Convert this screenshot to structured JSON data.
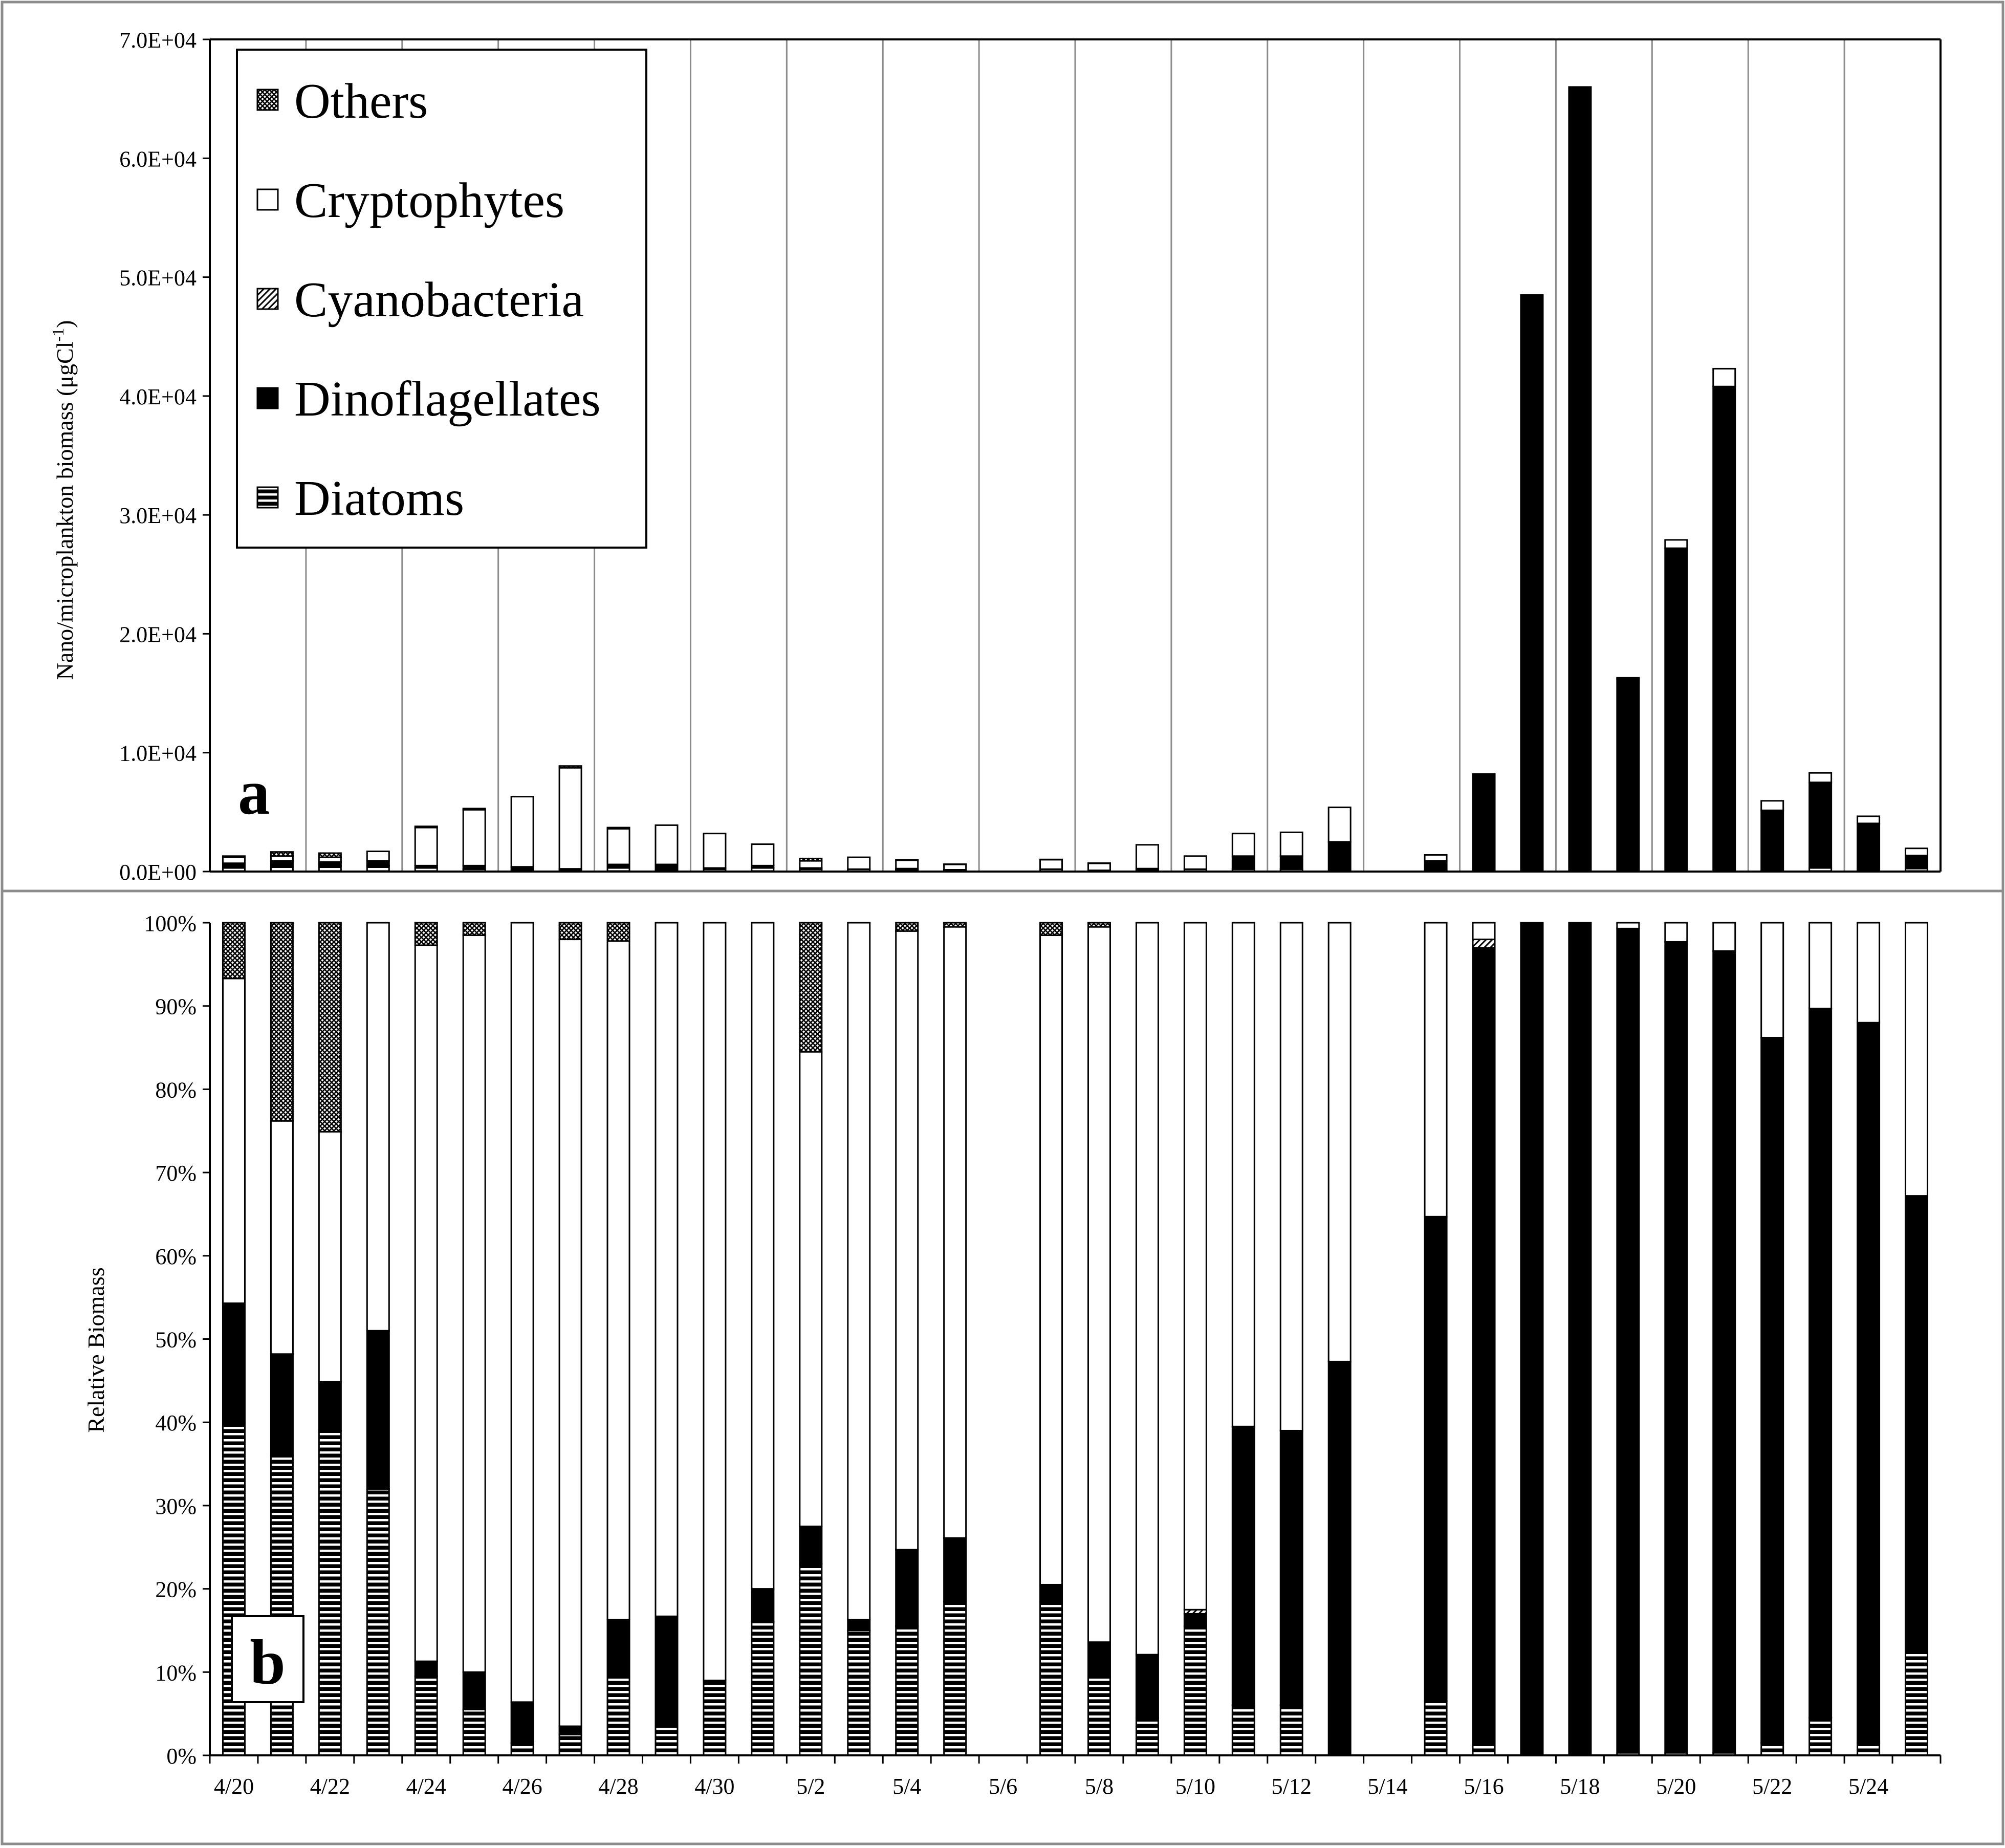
{
  "colors": {
    "background": "#ffffff",
    "axis": "#000000",
    "gridline": "#8c8c8c",
    "frame": "#8c8c8c",
    "bar_stroke": "#000000",
    "dinoflagellates": "#000000",
    "cryptophytes": "#ffffff"
  },
  "legend": {
    "placement": "top-left",
    "items": [
      {
        "label": "Others",
        "pattern": "crosshatch"
      },
      {
        "label": "Cryptophytes",
        "pattern": "white"
      },
      {
        "label": "Cyanobacteria",
        "pattern": "diagonal"
      },
      {
        "label": "Dinoflagellates",
        "pattern": "black"
      },
      {
        "label": "Diatoms",
        "pattern": "horizontal-stripes"
      }
    ]
  },
  "chart_data": [
    {
      "panel_label": "a",
      "type": "bar",
      "stacked": true,
      "ylabel": "Nano/microplankton biomass (μgCl-1)",
      "ylabel_parts": {
        "main": "Nano/microplankton biomass (μgCl",
        "superscript": "-1",
        "close": ")"
      },
      "ylim": [
        0,
        70000
      ],
      "yticks": [
        0,
        10000,
        20000,
        30000,
        40000,
        50000,
        60000,
        70000
      ],
      "ytick_labels": [
        "0.0E+00",
        "1.0E+04",
        "2.0E+04",
        "3.0E+04",
        "4.0E+04",
        "5.0E+04",
        "6.0E+04",
        "7.0E+04"
      ],
      "vertical_grid": true,
      "categories": [
        "4/20",
        "4/21",
        "4/22",
        "4/23",
        "4/24",
        "4/25",
        "4/26",
        "4/27",
        "4/28",
        "4/29",
        "4/30",
        "5/1",
        "5/2",
        "5/3",
        "5/4",
        "5/5",
        "5/6",
        "5/7",
        "5/8",
        "5/9",
        "5/10",
        "5/11",
        "5/12",
        "5/13",
        "5/14",
        "5/15",
        "5/16",
        "5/17",
        "5/18",
        "5/19",
        "5/20",
        "5/21",
        "5/22",
        "5/23",
        "5/24",
        "5/25"
      ],
      "series": [
        {
          "name": "Diatoms",
          "values": [
            300,
            400,
            500,
            500,
            300,
            200,
            50,
            30,
            300,
            100,
            200,
            300,
            200,
            200,
            150,
            100,
            0,
            200,
            50,
            100,
            200,
            200,
            200,
            0,
            0,
            100,
            100,
            0,
            0,
            0,
            0,
            0,
            50,
            300,
            50,
            250
          ]
        },
        {
          "name": "Dinoflagellates",
          "values": [
            400,
            500,
            300,
            400,
            200,
            300,
            350,
            200,
            300,
            500,
            100,
            200,
            100,
            0,
            100,
            50,
            0,
            0,
            50,
            150,
            0,
            1100,
            1100,
            2500,
            0,
            800,
            8000,
            48500,
            66000,
            16200,
            27200,
            40800,
            5100,
            7200,
            4000,
            1100
          ]
        },
        {
          "name": "Cyanobacteria",
          "values": [
            0,
            0,
            0,
            0,
            0,
            0,
            0,
            0,
            0,
            0,
            0,
            0,
            0,
            0,
            0,
            0,
            0,
            0,
            0,
            0,
            0,
            0,
            0,
            0,
            0,
            0,
            100,
            0,
            0,
            0,
            0,
            0,
            0,
            0,
            0,
            0
          ]
        },
        {
          "name": "Cryptophytes",
          "values": [
            500,
            400,
            400,
            800,
            3200,
            4700,
            5900,
            8500,
            3000,
            3300,
            2900,
            1800,
            600,
            1000,
            700,
            450,
            0,
            800,
            600,
            2000,
            1100,
            1900,
            2000,
            2900,
            0,
            500,
            0,
            0,
            0,
            100,
            700,
            1500,
            800,
            800,
            600,
            600
          ]
        },
        {
          "name": "Others",
          "values": [
            100,
            350,
            350,
            0,
            100,
            100,
            0,
            150,
            100,
            0,
            0,
            0,
            200,
            0,
            30,
            20,
            0,
            20,
            5,
            0,
            0,
            0,
            0,
            0,
            0,
            0,
            0,
            0,
            0,
            0,
            0,
            0,
            0,
            0,
            0,
            0
          ]
        }
      ]
    },
    {
      "panel_label": "b",
      "type": "bar",
      "stacked": true,
      "ylabel": "Relative Biomass",
      "ylim": [
        0,
        100
      ],
      "yticks": [
        0,
        10,
        20,
        30,
        40,
        50,
        60,
        70,
        80,
        90,
        100
      ],
      "ytick_labels": [
        "0%",
        "10%",
        "20%",
        "30%",
        "40%",
        "50%",
        "60%",
        "70%",
        "80%",
        "90%",
        "100%"
      ],
      "vertical_grid": false,
      "categories": [
        "4/20",
        "4/21",
        "4/22",
        "4/23",
        "4/24",
        "4/25",
        "4/26",
        "4/27",
        "4/28",
        "4/29",
        "4/30",
        "5/1",
        "5/2",
        "5/3",
        "5/4",
        "5/5",
        "5/6",
        "5/7",
        "5/8",
        "5/9",
        "5/10",
        "5/11",
        "5/12",
        "5/13",
        "5/14",
        "5/15",
        "5/16",
        "5/17",
        "5/18",
        "5/19",
        "5/20",
        "5/21",
        "5/22",
        "5/23",
        "5/24",
        "5/25"
      ],
      "xtick_labels": [
        "4/20",
        "4/22",
        "4/24",
        "4/26",
        "4/28",
        "4/30",
        "5/2",
        "5/4",
        "5/6",
        "5/8",
        "5/10",
        "5/12",
        "5/14",
        "5/16",
        "5/18",
        "5/20",
        "5/22",
        "5/24"
      ],
      "series": [
        {
          "name": "Diatoms",
          "values": [
            40,
            36,
            39,
            32,
            9.5,
            5.5,
            1.5,
            2.5,
            9.5,
            3.5,
            9,
            16,
            23,
            15,
            15.5,
            18.5,
            0,
            18.5,
            9.5,
            4.5,
            15.5,
            6,
            6,
            0,
            0,
            6.5,
            1.5,
            0,
            0,
            0.3,
            0.3,
            0.3,
            1.5,
            4.5,
            1.5,
            12.5
          ]
        },
        {
          "name": "Dinoflagellates",
          "values": [
            14.3,
            12.2,
            5.9,
            19,
            1.8,
            4.5,
            4.9,
            1,
            6.8,
            13.2,
            0,
            4,
            4.5,
            1.3,
            9.2,
            7.6,
            0,
            2,
            4.1,
            7.6,
            1.5,
            33.5,
            33,
            47.3,
            0,
            58.2,
            95.5,
            100,
            100,
            99,
            97.4,
            96.3,
            84.7,
            85.2,
            86.5,
            54.7
          ]
        },
        {
          "name": "Cyanobacteria",
          "values": [
            0,
            0,
            0,
            0,
            0,
            0,
            0,
            0,
            0,
            0,
            0,
            0,
            0,
            0,
            0,
            0,
            0,
            0,
            0,
            0,
            0.5,
            0,
            0,
            0,
            0,
            0,
            1,
            0,
            0,
            0,
            0,
            0,
            0,
            0,
            0,
            0
          ]
        },
        {
          "name": "Cryptophytes",
          "values": [
            39,
            28,
            30,
            49,
            86,
            88.5,
            93.6,
            94.5,
            81.5,
            83.3,
            91,
            80,
            57,
            83.7,
            74.3,
            73.4,
            0,
            78,
            85.9,
            87.9,
            82.5,
            60.5,
            61,
            52.7,
            0,
            35.3,
            2,
            0,
            0,
            0.7,
            2.3,
            3.4,
            13.8,
            10.3,
            12,
            32.8
          ]
        },
        {
          "name": "Others",
          "values": [
            6.7,
            23.8,
            25.1,
            0,
            2.7,
            1.5,
            0,
            2,
            2.2,
            0,
            0,
            0,
            15.5,
            0,
            1,
            0.5,
            0,
            1.5,
            0.5,
            0,
            0,
            0,
            0,
            0,
            0,
            0,
            0,
            0,
            0,
            0,
            0,
            0,
            0,
            0,
            0,
            0
          ]
        }
      ]
    }
  ]
}
